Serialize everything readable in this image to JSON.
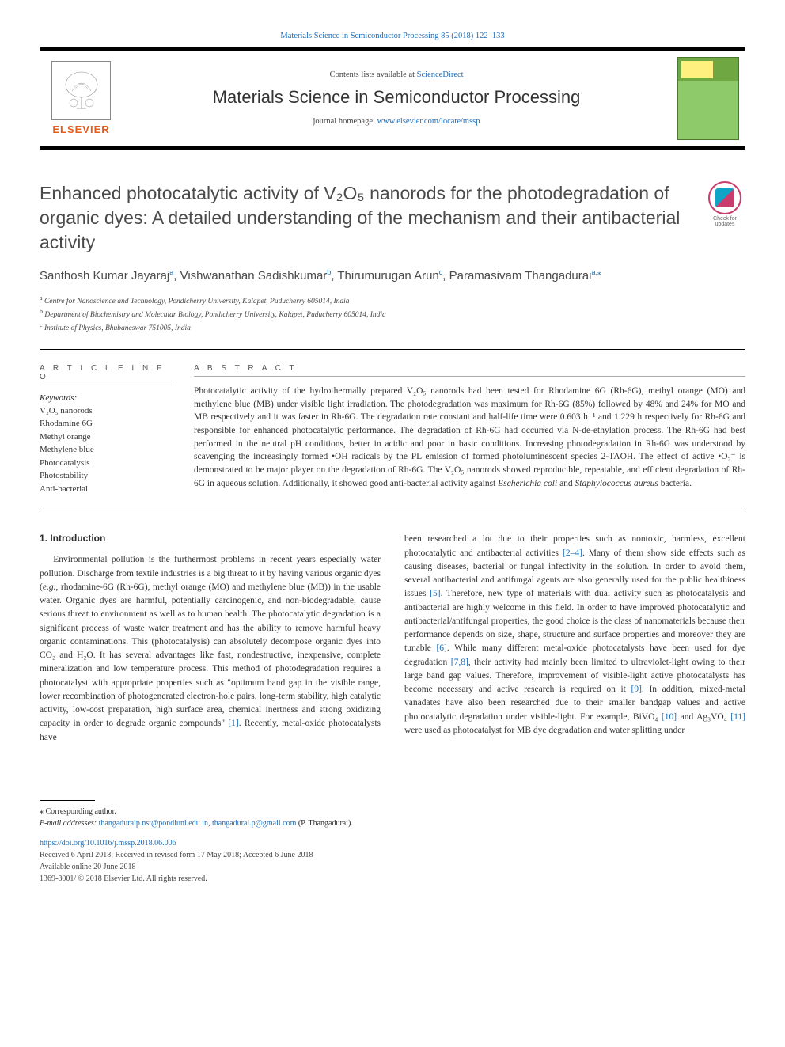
{
  "colors": {
    "link": "#1a6db8",
    "elsevier_orange": "#e65c1a",
    "rule": "#000000",
    "text": "#2b2b2b",
    "muted": "#555555",
    "cover_green_dark": "#6fa843",
    "cover_green_light": "#8ec96a",
    "badge_pink": "#c83c6e",
    "badge_teal": "#0fa3c7"
  },
  "journal_ref": "Materials Science in Semiconductor Processing 85 (2018) 122–133",
  "header": {
    "publisher": "ELSEVIER",
    "contents_prefix": "Contents lists available at ",
    "contents_link": "ScienceDirect",
    "journal_title": "Materials Science in Semiconductor Processing",
    "homepage_prefix": "journal homepage: ",
    "homepage_url": "www.elsevier.com/locate/mssp"
  },
  "check_updates": "Check for updates",
  "title": "Enhanced photocatalytic activity of V₂O₅ nanorods for the photodegradation of organic dyes: A detailed understanding of the mechanism and their antibacterial activity",
  "authors_html": "Santhosh Kumar Jayaraj<sup>a</sup>, Vishwanathan Sadishkumar<sup>b</sup>, Thirumurugan Arun<sup>c</sup>, Paramasivam Thangadurai<sup>a,⁎</sup>",
  "affiliations": [
    {
      "sup": "a",
      "text": "Centre for Nanoscience and Technology, Pondicherry University, Kalapet, Puducherry 605014, India"
    },
    {
      "sup": "b",
      "text": "Department of Biochemistry and Molecular Biology, Pondicherry University, Kalapet, Puducherry 605014, India"
    },
    {
      "sup": "c",
      "text": "Institute of Physics, Bhubaneswar 751005, India"
    }
  ],
  "section_heads": {
    "article_info": "A R T I C L E  I N F O",
    "abstract": "A B S T R A C T"
  },
  "keywords": {
    "label": "Keywords:",
    "items": [
      "V₂O₅ nanorods",
      "Rhodamine 6G",
      "Methyl orange",
      "Methylene blue",
      "Photocatalysis",
      "Photostability",
      "Anti-bacterial"
    ]
  },
  "abstract": "Photocatalytic activity of the hydrothermally prepared V₂O₅ nanorods had been tested for Rhodamine 6G (Rh-6G), methyl orange (MO) and methylene blue (MB) under visible light irradiation. The photodegradation was maximum for Rh-6G (85%) followed by 48% and 24% for MO and MB respectively and it was faster in Rh-6G. The degradation rate constant and half-life time were 0.603 h⁻¹ and 1.229 h respectively for Rh-6G and responsible for enhanced photocatalytic performance. The degradation of Rh-6G had occurred via N-de-ethylation process. The Rh-6G had best performed in the neutral pH conditions, better in acidic and poor in basic conditions. Increasing photodegradation in Rh-6G was understood by scavenging the increasingly formed •OH radicals by the PL emission of formed photoluminescent species 2-TAOH. The effect of active •O₂⁻ is demonstrated to be major player on the degradation of Rh-6G. The V₂O₅ nanorods showed reproducible, repeatable, and efficient degradation of Rh-6G in aqueous solution. Additionally, it showed good anti-bacterial activity against Escherichia coli and Staphylococcus aureus bacteria.",
  "body": {
    "heading": "1. Introduction",
    "col1": "Environmental pollution is the furthermost problems in recent years especially water pollution. Discharge from textile industries is a big threat to it by having various organic dyes (e.g., rhodamine-6G (Rh-6G), methyl orange (MO) and methylene blue (MB)) in the usable water. Organic dyes are harmful, potentially carcinogenic, and non-biodegradable, cause serious threat to environment as well as to human health. The photocatalytic degradation is a significant process of waste water treatment and has the ability to remove harmful heavy organic contaminations. This (photocatalysis) can absolutely decompose organic dyes into CO₂ and H₂O. It has several advantages like fast, nondestructive, inexpensive, complete mineralization and low temperature process. This method of photodegradation requires a photocatalyst with appropriate properties such as \"optimum band gap in the visible range, lower recombination of photogenerated electron-hole pairs, long-term stability, high catalytic activity, low-cost preparation, high surface area, chemical inertness and strong oxidizing capacity in order to degrade organic compounds\" [1]. Recently, metal-oxide photocatalysts have",
    "col2": "been researched a lot due to their properties such as nontoxic, harmless, excellent photocatalytic and antibacterial activities [2–4]. Many of them show side effects such as causing diseases, bacterial or fungal infectivity in the solution. In order to avoid them, several antibacterial and antifungal agents are also generally used for the public healthiness issues [5]. Therefore, new type of materials with dual activity such as photocatalysis and antibacterial are highly welcome in this field. In order to have improved photocatalytic and antibacterial/antifungal properties, the good choice is the class of nanomaterials because their performance depends on size, shape, structure and surface properties and moreover they are tunable [6]. While many different metal-oxide photocatalysts have been used for dye degradation [7,8], their activity had mainly been limited to ultraviolet-light owing to their large band gap values. Therefore, improvement of visible-light active photocatalysts has become necessary and active research is required on it [9]. In addition, mixed-metal vanadates have also been researched due to their smaller bandgap values and active photocatalytic degradation under visible-light. For example, BiVO₄ [10] and Ag₃VO₄ [11] were used as photocatalyst for MB dye degradation and water splitting under",
    "refs_col1": [
      "[1]"
    ],
    "refs_col2": [
      "[2–4]",
      "[5]",
      "[6]",
      "[7,8]",
      "[9]",
      "[10]",
      "[11]"
    ]
  },
  "footer": {
    "corr": "⁎ Corresponding author.",
    "email_label": "E-mail addresses:",
    "emails": [
      "thangaduraip.nst@pondiuni.edu.in",
      "thangadurai.p@gmail.com"
    ],
    "email_author": "(P. Thangadurai).",
    "doi": "https://doi.org/10.1016/j.mssp.2018.06.006",
    "received": "Received 6 April 2018; Received in revised form 17 May 2018; Accepted 6 June 2018",
    "available": "Available online 20 June 2018",
    "copyright": "1369-8001/ © 2018 Elsevier Ltd. All rights reserved."
  }
}
